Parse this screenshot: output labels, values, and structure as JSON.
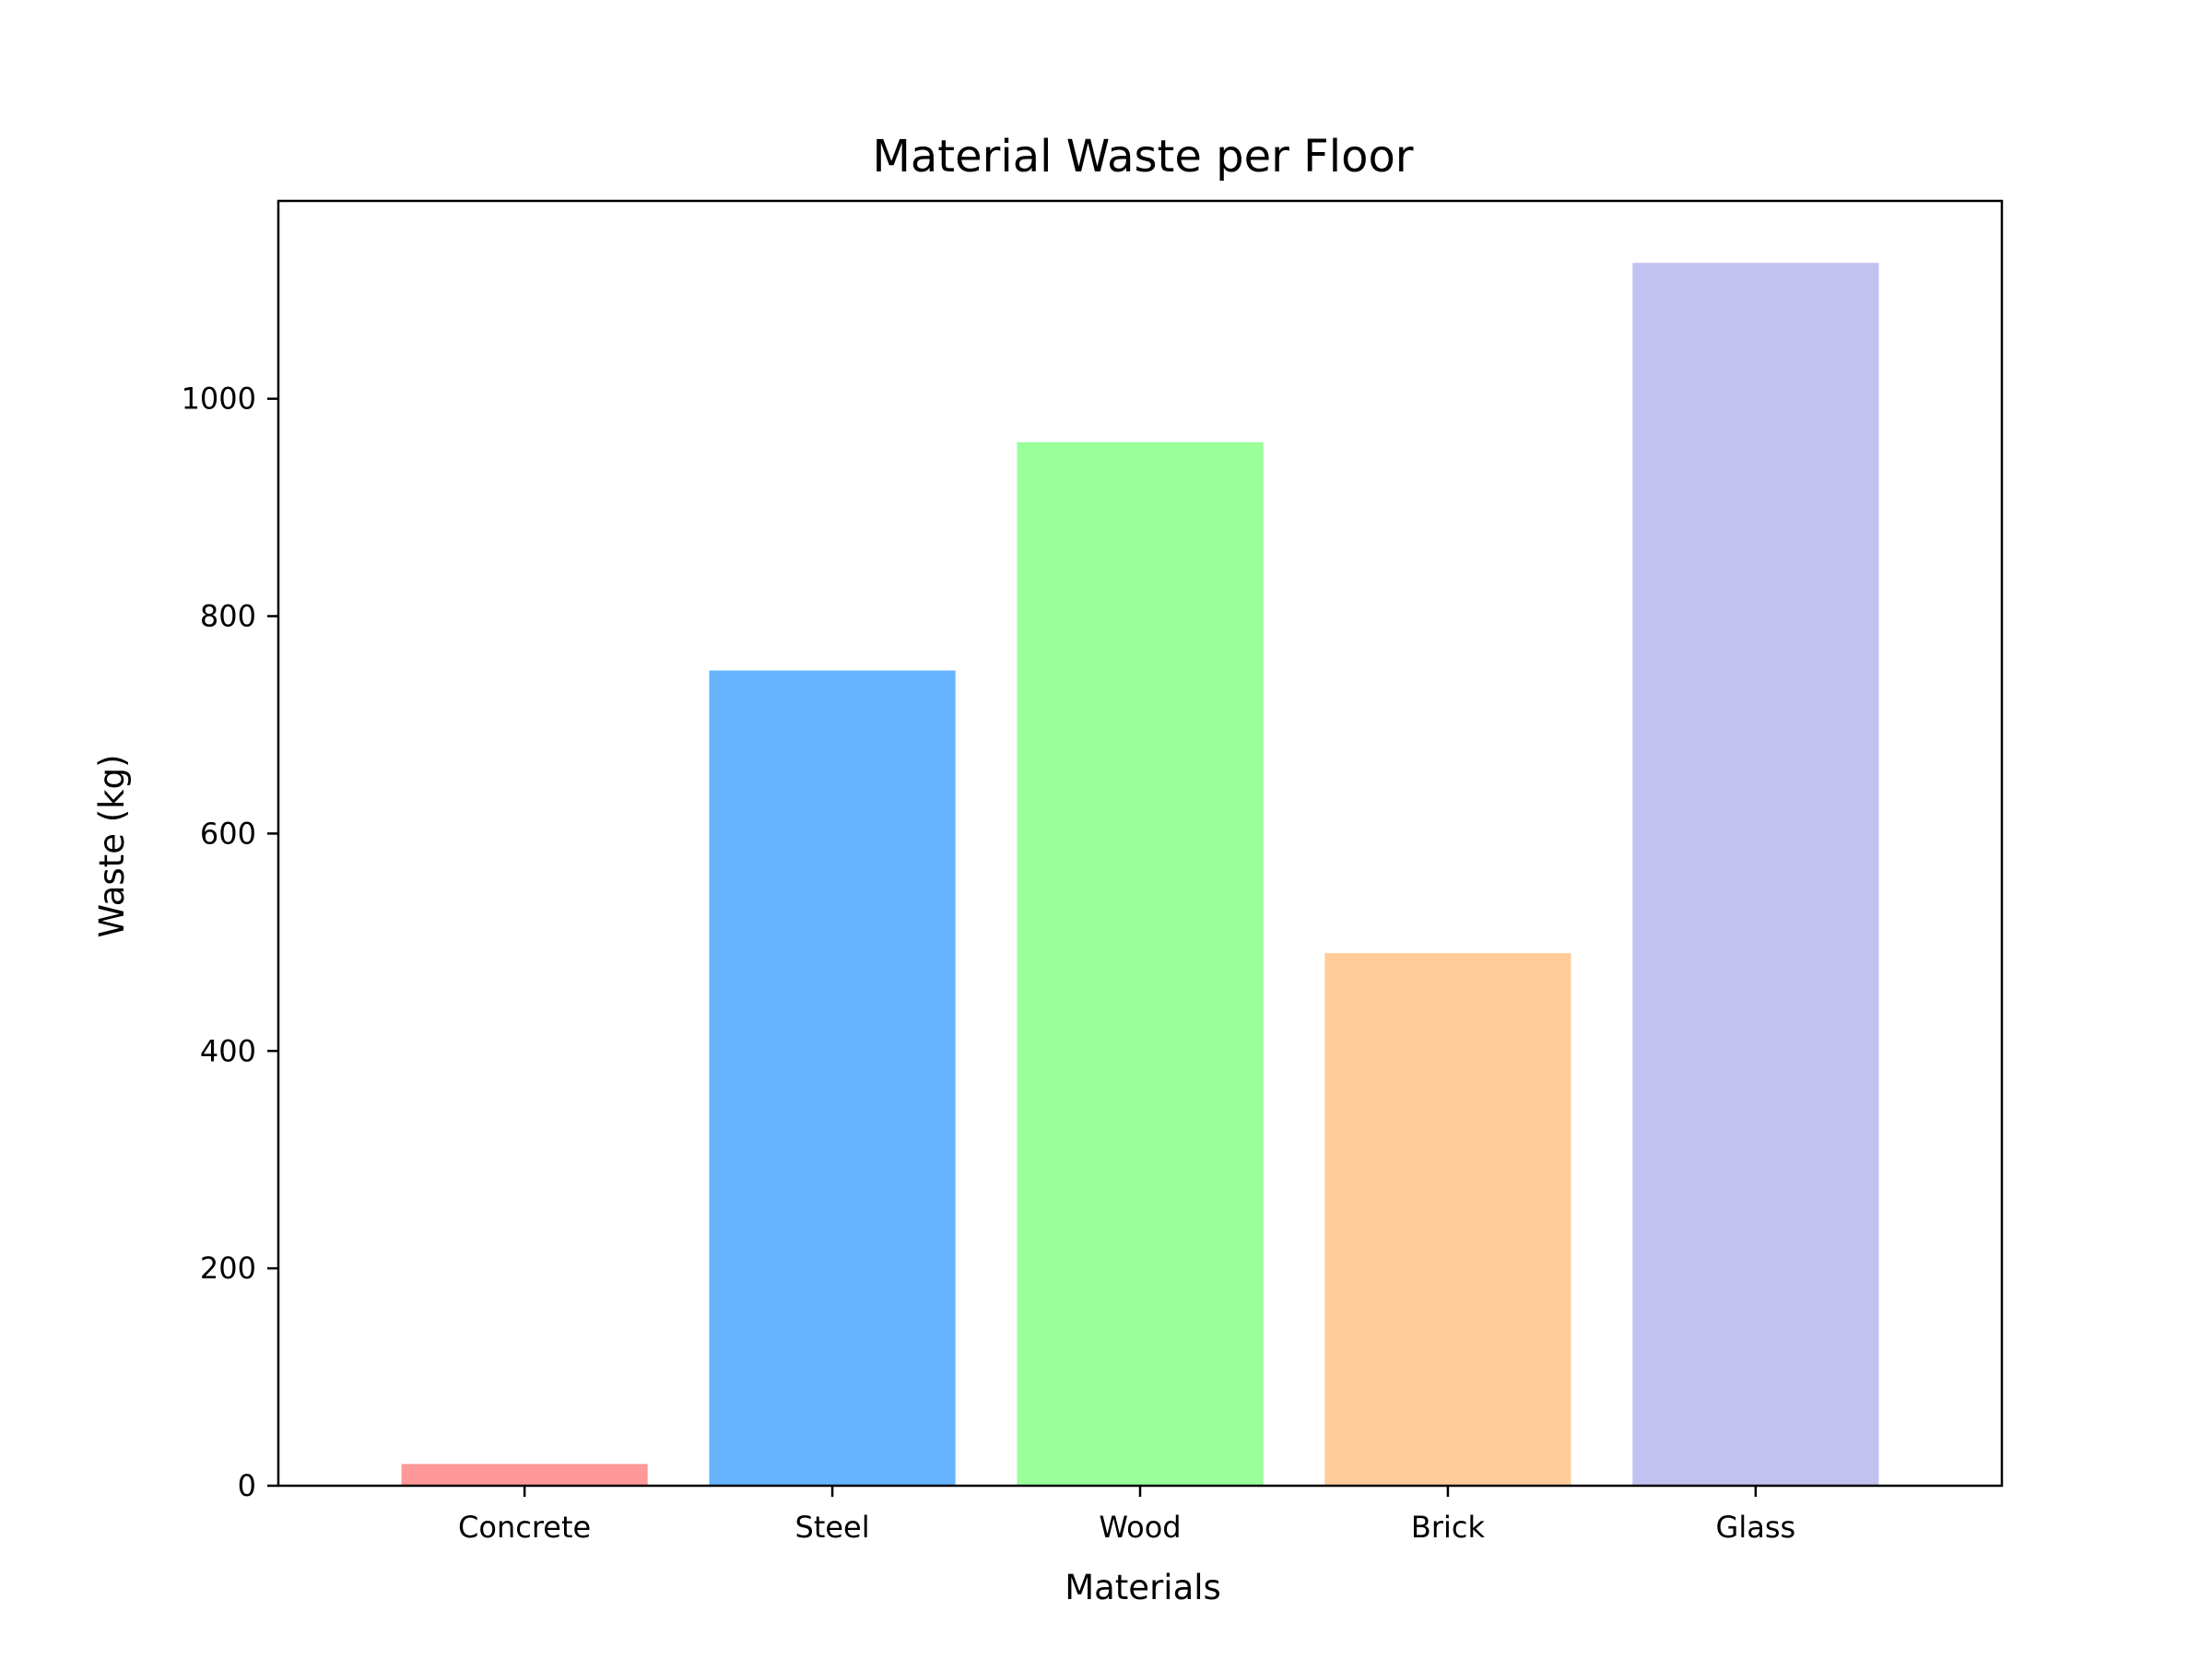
{
  "chart_data": {
    "type": "bar",
    "title": "Material Waste per Floor",
    "xlabel": "Materials",
    "ylabel": "Waste (kg)",
    "categories": [
      "Concrete",
      "Steel",
      "Wood",
      "Brick",
      "Glass"
    ],
    "values": [
      20,
      750,
      960,
      490,
      1125
    ],
    "colors": [
      "#ff9999",
      "#66b3ff",
      "#99ff99",
      "#ffcc99",
      "#c2c2f0"
    ],
    "ylim": [
      0,
      1182
    ],
    "yticks": [
      0,
      200,
      400,
      600,
      800,
      1000
    ],
    "ytick_labels": [
      "0",
      "200",
      "400",
      "600",
      "800",
      "1000"
    ],
    "grid": false,
    "legend": "none"
  }
}
